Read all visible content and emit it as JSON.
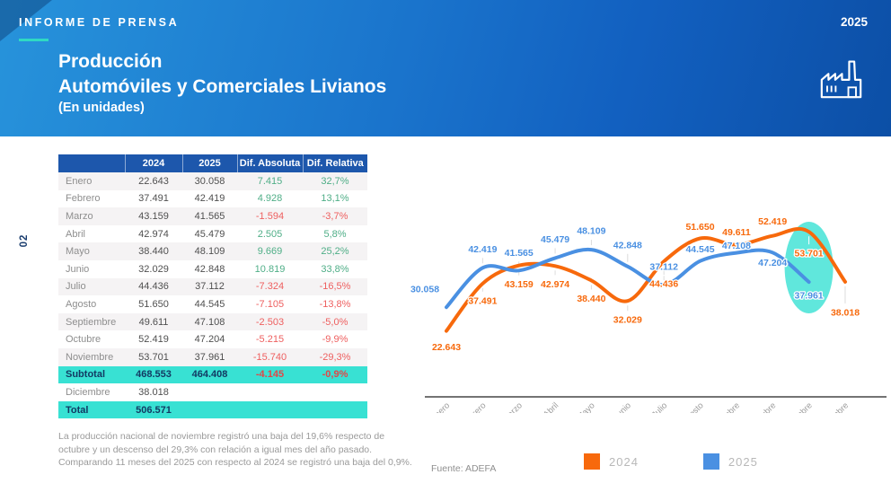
{
  "header": {
    "kicker": "INFORME DE PRENSA",
    "title_line1": "Producción",
    "title_line2": "Automóviles y Comerciales Livianos",
    "title_line3": "(En unidades)",
    "year": "2025",
    "icon": "factory-icon"
  },
  "page_number": "02",
  "colors": {
    "orange": "#F7690C",
    "blue": "#4A90E2",
    "teal": "#38E1D3",
    "header_blue": "#1D57AC",
    "navy": "#123A63",
    "green": "#4FAE87",
    "red": "#EE5F5F",
    "axis": "#454545",
    "underline_teal": "#2FD9C3"
  },
  "table": {
    "columns": [
      "",
      "2024",
      "2025",
      "Dif. Absoluta",
      "Dif. Relativa"
    ],
    "rows": [
      {
        "type": "month",
        "cells": [
          "Enero",
          "22.643",
          "30.058",
          "7.415",
          "32,7%"
        ]
      },
      {
        "type": "month",
        "cells": [
          "Febrero",
          "37.491",
          "42.419",
          "4.928",
          "13,1%"
        ]
      },
      {
        "type": "month",
        "cells": [
          "Marzo",
          "43.159",
          "41.565",
          "-1.594",
          "-3,7%"
        ]
      },
      {
        "type": "month",
        "cells": [
          "Abril",
          "42.974",
          "45.479",
          "2.505",
          "5,8%"
        ]
      },
      {
        "type": "month",
        "cells": [
          "Mayo",
          "38.440",
          "48.109",
          "9.669",
          "25,2%"
        ]
      },
      {
        "type": "month",
        "cells": [
          "Junio",
          "32.029",
          "42.848",
          "10.819",
          "33,8%"
        ]
      },
      {
        "type": "month",
        "cells": [
          "Julio",
          "44.436",
          "37.112",
          "-7.324",
          "-16,5%"
        ]
      },
      {
        "type": "month",
        "cells": [
          "Agosto",
          "51.650",
          "44.545",
          "-7.105",
          "-13,8%"
        ]
      },
      {
        "type": "month",
        "cells": [
          "Septiembre",
          "49.611",
          "47.108",
          "-2.503",
          "-5,0%"
        ]
      },
      {
        "type": "month",
        "cells": [
          "Octubre",
          "52.419",
          "47.204",
          "-5.215",
          "-9,9%"
        ]
      },
      {
        "type": "month",
        "cells": [
          "Noviembre",
          "53.701",
          "37.961",
          "-15.740",
          "-29,3%"
        ]
      },
      {
        "type": "subtotal",
        "cells": [
          "Subtotal",
          "468.553",
          "464.408",
          "-4.145",
          "-0,9%"
        ]
      },
      {
        "type": "month",
        "cells": [
          "Diciembre",
          "38.018",
          "",
          "",
          ""
        ]
      },
      {
        "type": "total",
        "cells": [
          "Total",
          "506.571",
          "",
          "",
          ""
        ]
      }
    ]
  },
  "footnote": {
    "line1": "La producción nacional de noviembre registró una baja del 19,6% respecto de octubre y un descenso del 29,3% con relación a igual mes del año pasado.",
    "line2": "Comparando 11 meses del 2025 con respecto al 2024 se registró una baja del 0,9%."
  },
  "source": "Fuente: ADEFA",
  "chart_data": {
    "type": "line",
    "title": "",
    "categories": [
      "Enero",
      "Febrero",
      "Marzo",
      "Abril",
      "Mayo",
      "Junio",
      "Julio",
      "Agosto",
      "Septiembre",
      "Octubre",
      "Noviembre",
      "Diciembre"
    ],
    "series": [
      {
        "name": "2024",
        "color": "#F7690C",
        "values": [
          22643,
          37491,
          43159,
          42974,
          38440,
          32029,
          44436,
          51650,
          49611,
          52419,
          53701,
          38018
        ],
        "labels": [
          "22.643",
          "37.491",
          "43.159",
          "42.974",
          "38.440",
          "32.029",
          "44.436",
          "51.650",
          "49.611",
          "52.419",
          "53.701",
          "38.018"
        ]
      },
      {
        "name": "2025",
        "color": "#4A90E2",
        "values": [
          30058,
          42419,
          41565,
          45479,
          48109,
          42848,
          37112,
          44545,
          47108,
          47204,
          37961
        ],
        "labels": [
          "30.058",
          "42.419",
          "41.565",
          "45.479",
          "48.109",
          "42.848",
          "37.112",
          "44.545",
          "47.108",
          "47.204",
          "37.961"
        ]
      }
    ],
    "ylim": [
      20000,
      56000
    ],
    "grid": false,
    "legend_position": "bottom",
    "highlight": {
      "category": "Noviembre",
      "shape": "ellipse",
      "color": "#38E1D3"
    },
    "layout": {
      "label_dy": {
        "2024": [
          18,
          19,
          21,
          20,
          20,
          21,
          25,
          -13,
          -14,
          -16,
          24,
          34
        ],
        "2025": [
          -20,
          -21,
          -20,
          -21,
          -21,
          -24,
          -20,
          -13,
          -8,
          11,
          15
        ]
      },
      "label_dx": {
        "2024": [
          0,
          0,
          0,
          0,
          0,
          0,
          0,
          0,
          0,
          0,
          0,
          0
        ],
        "2025": [
          -24,
          0,
          0,
          0,
          0,
          0,
          0,
          0,
          0,
          0,
          0
        ]
      }
    }
  }
}
